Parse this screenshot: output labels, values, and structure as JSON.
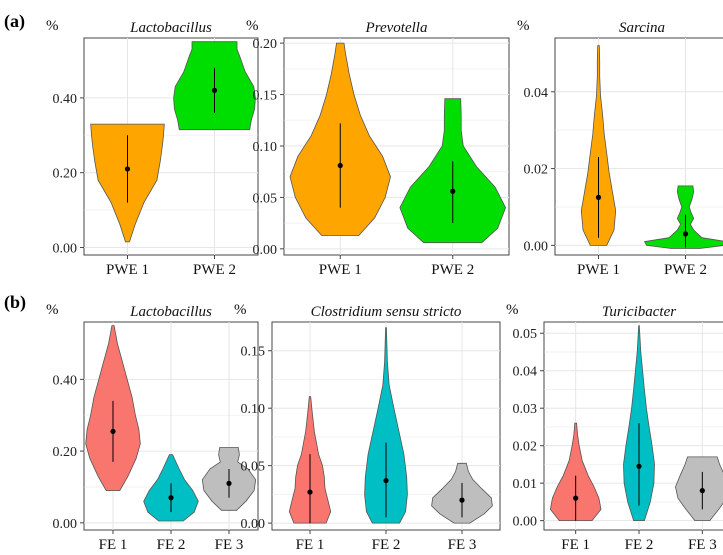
{
  "panel_labels": [
    "(a)",
    "(b)"
  ],
  "colors": {
    "orange": "#FFA500",
    "green": "#00DD00",
    "red": "#F8766D",
    "teal": "#00BFC4",
    "gray": "#BEBEBE"
  },
  "chart_data": [
    {
      "type": "violin",
      "panel": "(a)",
      "title": "Lactobacillus",
      "unit": "%",
      "ylim": [
        -0.02,
        0.56
      ],
      "yticks": [
        0.0,
        0.2,
        0.4
      ],
      "ytick_labels": [
        "0.00",
        "0.20",
        "0.40"
      ],
      "grid": true,
      "groups": [
        {
          "name": "PWE 1",
          "color": "#FFA500",
          "min": 0.015,
          "max": 0.33,
          "mean": 0.21,
          "whisker": [
            0.12,
            0.3
          ],
          "density": [
            [
              0.015,
              0.05
            ],
            [
              0.06,
              0.18
            ],
            [
              0.12,
              0.4
            ],
            [
              0.18,
              0.72
            ],
            [
              0.23,
              0.8
            ],
            [
              0.27,
              0.85
            ],
            [
              0.3,
              0.88
            ],
            [
              0.33,
              0.9
            ]
          ]
        },
        {
          "name": "PWE 2",
          "color": "#00DD00",
          "min": 0.315,
          "max": 0.55,
          "mean": 0.42,
          "whisker": [
            0.36,
            0.48
          ],
          "density": [
            [
              0.315,
              0.86
            ],
            [
              0.34,
              0.9
            ],
            [
              0.37,
              0.98
            ],
            [
              0.4,
              1.0
            ],
            [
              0.43,
              0.96
            ],
            [
              0.47,
              0.75
            ],
            [
              0.51,
              0.62
            ],
            [
              0.53,
              0.55
            ],
            [
              0.55,
              0.55
            ]
          ]
        }
      ]
    },
    {
      "type": "violin",
      "panel": "(a)",
      "title": "Prevotella",
      "unit": "%",
      "ylim": [
        -0.006,
        0.205
      ],
      "yticks": [
        0.0,
        0.05,
        0.1,
        0.15,
        0.2
      ],
      "ytick_labels": [
        "0.00",
        "0.05",
        "0.10",
        "0.15",
        "0.20"
      ],
      "grid": true,
      "groups": [
        {
          "name": "PWE 1",
          "color": "#FFA500",
          "min": 0.013,
          "max": 0.2,
          "mean": 0.081,
          "whisker": [
            0.04,
            0.122
          ],
          "density": [
            [
              0.013,
              0.35
            ],
            [
              0.03,
              0.65
            ],
            [
              0.05,
              0.85
            ],
            [
              0.07,
              0.95
            ],
            [
              0.09,
              0.8
            ],
            [
              0.11,
              0.55
            ],
            [
              0.13,
              0.38
            ],
            [
              0.15,
              0.26
            ],
            [
              0.17,
              0.17
            ],
            [
              0.19,
              0.1
            ],
            [
              0.2,
              0.07
            ]
          ]
        },
        {
          "name": "PWE 2",
          "color": "#00DD00",
          "min": 0.006,
          "max": 0.146,
          "mean": 0.056,
          "whisker": [
            0.025,
            0.085
          ],
          "density": [
            [
              0.006,
              0.55
            ],
            [
              0.02,
              0.85
            ],
            [
              0.04,
              1.0
            ],
            [
              0.06,
              0.8
            ],
            [
              0.08,
              0.45
            ],
            [
              0.1,
              0.2
            ],
            [
              0.115,
              0.16
            ],
            [
              0.13,
              0.16
            ],
            [
              0.146,
              0.15
            ]
          ]
        }
      ]
    },
    {
      "type": "violin",
      "panel": "(a)",
      "title": "Sarcina",
      "unit": "%",
      "ylim": [
        -0.0025,
        0.054
      ],
      "yticks": [
        0.0,
        0.02,
        0.04
      ],
      "ytick_labels": [
        "0.00",
        "0.02",
        "0.04"
      ],
      "grid": true,
      "groups": [
        {
          "name": "PWE 1",
          "color": "#FFA500",
          "min": 0.0,
          "max": 0.052,
          "mean": 0.0125,
          "whisker": [
            0.002,
            0.023
          ],
          "density": [
            [
              0.0,
              0.2
            ],
            [
              0.004,
              0.38
            ],
            [
              0.009,
              0.42
            ],
            [
              0.014,
              0.34
            ],
            [
              0.019,
              0.26
            ],
            [
              0.024,
              0.2
            ],
            [
              0.029,
              0.14
            ],
            [
              0.034,
              0.1
            ],
            [
              0.039,
              0.05
            ],
            [
              0.044,
              0.03
            ],
            [
              0.048,
              0.03
            ],
            [
              0.052,
              0.02
            ]
          ]
        },
        {
          "name": "PWE 2",
          "color": "#00DD00",
          "min": -0.0008,
          "max": 0.0155,
          "mean": 0.003,
          "whisker": [
            -0.0005,
            0.008
          ],
          "density": [
            [
              -0.0008,
              0.35
            ],
            [
              0.0,
              0.95
            ],
            [
              0.001,
              1.0
            ],
            [
              0.002,
              0.4
            ],
            [
              0.004,
              0.2
            ],
            [
              0.0055,
              0.12
            ],
            [
              0.007,
              0.2
            ],
            [
              0.0085,
              0.14
            ],
            [
              0.01,
              0.09
            ],
            [
              0.012,
              0.16
            ],
            [
              0.014,
              0.2
            ],
            [
              0.0155,
              0.18
            ]
          ]
        }
      ]
    },
    {
      "type": "violin",
      "panel": "(b)",
      "title": "Lactobacillus",
      "unit": "%",
      "ylim": [
        -0.02,
        0.56
      ],
      "yticks": [
        0.0,
        0.2,
        0.4
      ],
      "ytick_labels": [
        "0.00",
        "0.20",
        "0.40"
      ],
      "grid": true,
      "groups": [
        {
          "name": "FE 1",
          "color": "#F8766D",
          "min": 0.09,
          "max": 0.55,
          "mean": 0.255,
          "whisker": [
            0.17,
            0.34
          ],
          "density": [
            [
              0.09,
              0.25
            ],
            [
              0.13,
              0.55
            ],
            [
              0.18,
              0.85
            ],
            [
              0.22,
              1.0
            ],
            [
              0.26,
              0.95
            ],
            [
              0.3,
              0.82
            ],
            [
              0.35,
              0.7
            ],
            [
              0.4,
              0.52
            ],
            [
              0.45,
              0.34
            ],
            [
              0.5,
              0.16
            ],
            [
              0.55,
              0.04
            ]
          ]
        },
        {
          "name": "FE 2",
          "color": "#00BFC4",
          "min": 0.005,
          "max": 0.19,
          "mean": 0.07,
          "whisker": [
            0.03,
            0.11
          ],
          "density": [
            [
              0.005,
              0.45
            ],
            [
              0.03,
              0.85
            ],
            [
              0.06,
              1.0
            ],
            [
              0.09,
              0.8
            ],
            [
              0.12,
              0.5
            ],
            [
              0.15,
              0.3
            ],
            [
              0.17,
              0.18
            ],
            [
              0.19,
              0.06
            ]
          ]
        },
        {
          "name": "FE 3",
          "color": "#BEBEBE",
          "min": 0.035,
          "max": 0.21,
          "mean": 0.11,
          "whisker": [
            0.07,
            0.15
          ],
          "density": [
            [
              0.035,
              0.28
            ],
            [
              0.06,
              0.62
            ],
            [
              0.09,
              0.92
            ],
            [
              0.12,
              0.98
            ],
            [
              0.15,
              0.7
            ],
            [
              0.17,
              0.32
            ],
            [
              0.19,
              0.38
            ],
            [
              0.21,
              0.34
            ]
          ]
        }
      ]
    },
    {
      "type": "violin",
      "panel": "(b)",
      "title": "Clostridium sensu stricto",
      "unit": "%",
      "ylim": [
        -0.006,
        0.175
      ],
      "yticks": [
        0.0,
        0.05,
        0.1,
        0.15
      ],
      "ytick_labels": [
        "0.00",
        "0.05",
        "0.10",
        "0.15"
      ],
      "grid": true,
      "groups": [
        {
          "name": "FE 1",
          "color": "#F8766D",
          "min": 0.0,
          "max": 0.11,
          "mean": 0.027,
          "whisker": [
            0.0,
            0.06
          ],
          "density": [
            [
              0.0,
              0.45
            ],
            [
              0.01,
              0.58
            ],
            [
              0.02,
              0.5
            ],
            [
              0.03,
              0.42
            ],
            [
              0.04,
              0.4
            ],
            [
              0.05,
              0.35
            ],
            [
              0.06,
              0.24
            ],
            [
              0.08,
              0.12
            ],
            [
              0.1,
              0.05
            ],
            [
              0.11,
              0.02
            ]
          ]
        },
        {
          "name": "FE 2",
          "color": "#00BFC4",
          "min": 0.0,
          "max": 0.17,
          "mean": 0.037,
          "whisker": [
            0.005,
            0.07
          ],
          "density": [
            [
              0.0,
              0.38
            ],
            [
              0.01,
              0.55
            ],
            [
              0.025,
              0.6
            ],
            [
              0.04,
              0.58
            ],
            [
              0.06,
              0.5
            ],
            [
              0.08,
              0.36
            ],
            [
              0.1,
              0.22
            ],
            [
              0.12,
              0.09
            ],
            [
              0.14,
              0.04
            ],
            [
              0.17,
              0.01
            ]
          ]
        },
        {
          "name": "FE 3",
          "color": "#BEBEBE",
          "min": 0.0,
          "max": 0.052,
          "mean": 0.02,
          "whisker": [
            0.005,
            0.035
          ],
          "density": [
            [
              0.0,
              0.22
            ],
            [
              0.008,
              0.62
            ],
            [
              0.015,
              0.85
            ],
            [
              0.022,
              0.82
            ],
            [
              0.03,
              0.55
            ],
            [
              0.038,
              0.3
            ],
            [
              0.045,
              0.18
            ],
            [
              0.052,
              0.12
            ]
          ]
        }
      ]
    },
    {
      "type": "violin",
      "panel": "(b)",
      "title": "Turicibacter",
      "unit": "%",
      "ylim": [
        -0.0025,
        0.053
      ],
      "yticks": [
        0.0,
        0.01,
        0.02,
        0.03,
        0.04,
        0.05
      ],
      "ytick_labels": [
        "0.00",
        "0.01",
        "0.02",
        "0.03",
        "0.04",
        "0.05"
      ],
      "grid": true,
      "groups": [
        {
          "name": "FE 1",
          "color": "#F8766D",
          "min": 0.0,
          "max": 0.026,
          "mean": 0.006,
          "whisker": [
            0.0,
            0.012
          ],
          "density": [
            [
              0.0,
              0.55
            ],
            [
              0.003,
              0.85
            ],
            [
              0.006,
              0.78
            ],
            [
              0.009,
              0.62
            ],
            [
              0.012,
              0.42
            ],
            [
              0.016,
              0.22
            ],
            [
              0.02,
              0.12
            ],
            [
              0.023,
              0.06
            ],
            [
              0.026,
              0.03
            ]
          ]
        },
        {
          "name": "FE 2",
          "color": "#00BFC4",
          "min": 0.0,
          "max": 0.052,
          "mean": 0.0145,
          "whisker": [
            0.004,
            0.026
          ],
          "density": [
            [
              0.0,
              0.18
            ],
            [
              0.005,
              0.38
            ],
            [
              0.01,
              0.5
            ],
            [
              0.015,
              0.52
            ],
            [
              0.02,
              0.44
            ],
            [
              0.025,
              0.34
            ],
            [
              0.03,
              0.25
            ],
            [
              0.035,
              0.18
            ],
            [
              0.04,
              0.12
            ],
            [
              0.045,
              0.06
            ],
            [
              0.052,
              0.01
            ]
          ]
        },
        {
          "name": "FE 3",
          "color": "#BEBEBE",
          "min": 0.0,
          "max": 0.017,
          "mean": 0.008,
          "whisker": [
            0.003,
            0.013
          ],
          "density": [
            [
              0.0,
              0.25
            ],
            [
              0.003,
              0.55
            ],
            [
              0.006,
              0.82
            ],
            [
              0.009,
              0.9
            ],
            [
              0.012,
              0.75
            ],
            [
              0.015,
              0.58
            ],
            [
              0.017,
              0.5
            ]
          ]
        }
      ]
    }
  ]
}
